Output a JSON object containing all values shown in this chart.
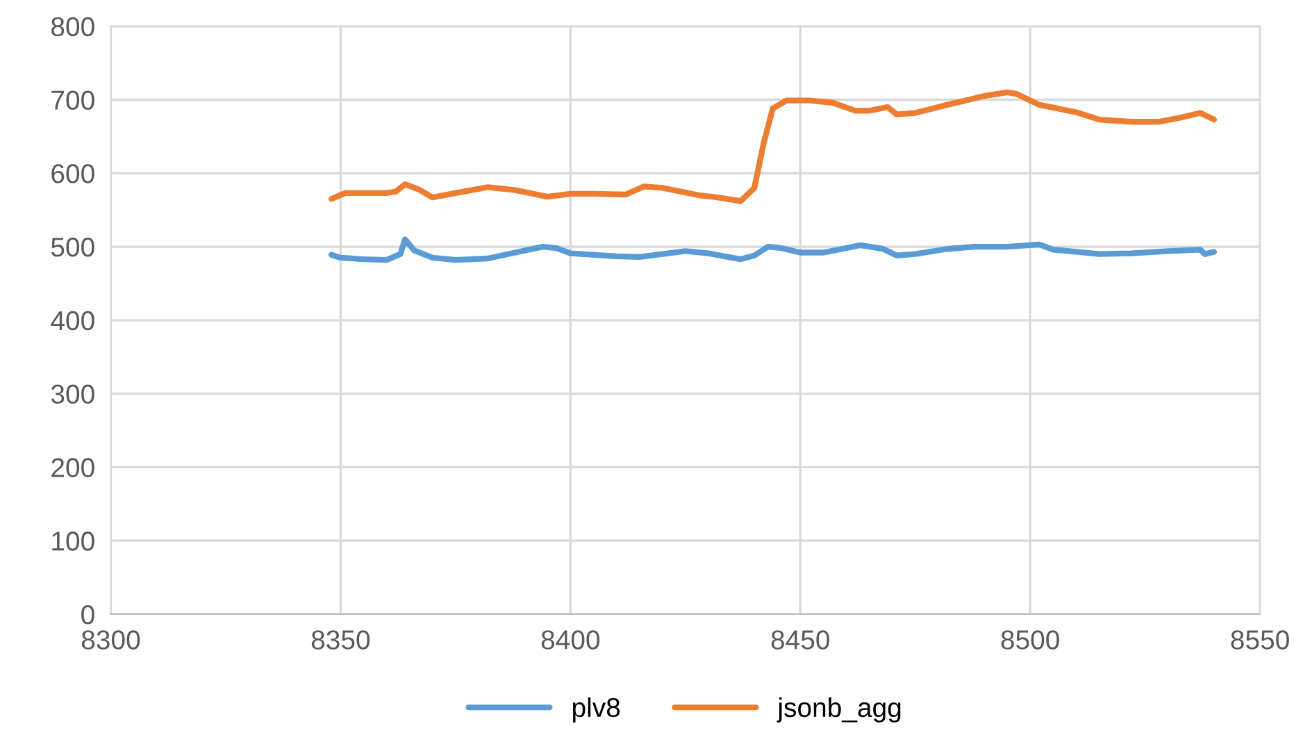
{
  "chart_data": {
    "type": "line",
    "xlim": [
      8300,
      8550
    ],
    "xticks": [
      8300,
      8350,
      8400,
      8450,
      8500,
      8550
    ],
    "ylim": [
      0,
      800
    ],
    "yticks": [
      0,
      100,
      200,
      300,
      400,
      500,
      600,
      700,
      800
    ],
    "grid": true,
    "legend": "bottom",
    "marker": "none",
    "line_style": "solid",
    "series": [
      {
        "name": "plv8",
        "color": "#5b9bd5",
        "x": [
          8348,
          8350,
          8355,
          8360,
          8363,
          8364,
          8366,
          8370,
          8375,
          8382,
          8388,
          8394,
          8397,
          8400,
          8410,
          8415,
          8420,
          8425,
          8430,
          8437,
          8440,
          8443,
          8446,
          8450,
          8455,
          8460,
          8463,
          8468,
          8471,
          8475,
          8482,
          8488,
          8495,
          8502,
          8505,
          8510,
          8515,
          8522,
          8530,
          8537,
          8538,
          8540
        ],
        "values": [
          489,
          485,
          483,
          482,
          490,
          510,
          495,
          485,
          482,
          484,
          492,
          500,
          498,
          491,
          487,
          486,
          490,
          494,
          491,
          483,
          488,
          500,
          498,
          492,
          492,
          498,
          502,
          497,
          488,
          490,
          497,
          500,
          500,
          503,
          496,
          493,
          490,
          491,
          494,
          496,
          490,
          493
        ]
      },
      {
        "name": "jsonb_agg",
        "color": "#ed7d31",
        "x": [
          8348,
          8351,
          8360,
          8362,
          8364,
          8367,
          8370,
          8375,
          8382,
          8388,
          8395,
          8400,
          8405,
          8412,
          8416,
          8420,
          8428,
          8432,
          8437,
          8440,
          8442,
          8444,
          8447,
          8452,
          8457,
          8462,
          8465,
          8469,
          8471,
          8475,
          8482,
          8490,
          8495,
          8497,
          8502,
          8506,
          8510,
          8515,
          8522,
          8528,
          8533,
          8537,
          8540
        ],
        "values": [
          565,
          573,
          573,
          575,
          585,
          578,
          567,
          573,
          581,
          577,
          568,
          572,
          572,
          571,
          582,
          580,
          570,
          567,
          562,
          580,
          640,
          688,
          699,
          699,
          696,
          685,
          685,
          690,
          680,
          682,
          693,
          705,
          710,
          708,
          693,
          688,
          683,
          673,
          670,
          670,
          676,
          682,
          673
        ]
      }
    ]
  }
}
